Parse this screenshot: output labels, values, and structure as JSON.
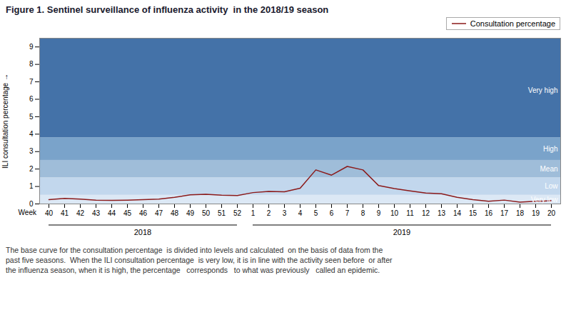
{
  "chart_data": {
    "type": "line",
    "title": "Figure 1. Sentinel surveillance of influenza activity  in the 2018/19 season",
    "ylabel": "ILI consultation percentage",
    "xlabel": "Week",
    "categories": [
      "40",
      "41",
      "42",
      "43",
      "44",
      "45",
      "46",
      "47",
      "48",
      "49",
      "50",
      "51",
      "52",
      "1",
      "2",
      "3",
      "4",
      "5",
      "6",
      "7",
      "8",
      "9",
      "10",
      "11",
      "12",
      "13",
      "14",
      "15",
      "16",
      "17",
      "18",
      "19",
      "20"
    ],
    "series": [
      {
        "name": "Consultation percentage",
        "color": "#8b1a1a",
        "values": [
          0.25,
          0.32,
          0.28,
          0.22,
          0.2,
          0.22,
          0.25,
          0.28,
          0.38,
          0.52,
          0.55,
          0.5,
          0.48,
          0.65,
          0.72,
          0.7,
          0.9,
          1.95,
          1.65,
          2.15,
          1.95,
          1.05,
          0.88,
          0.75,
          0.62,
          0.58,
          0.38,
          0.25,
          0.15,
          0.22,
          0.1,
          0.15,
          0.18
        ]
      }
    ],
    "ylim": [
      0,
      9.5
    ],
    "yticks": [
      0,
      1,
      2,
      3,
      4,
      5,
      6,
      7,
      8,
      9
    ],
    "grid": false,
    "legend": "upper right",
    "zones": [
      {
        "ymin": 0,
        "ymax": 0.5,
        "color": "#dce8f5"
      },
      {
        "ymin": 0.5,
        "ymax": 1.5,
        "color": "#c2d7ed"
      },
      {
        "ymin": 1.5,
        "ymax": 2.5,
        "color": "#9fbdd9"
      },
      {
        "ymin": 2.5,
        "ymax": 3.8,
        "color": "#7aa3ca"
      },
      {
        "ymin": 3.8,
        "ymax": 9.5,
        "color": "#4472a8"
      }
    ],
    "zone_labels": [
      {
        "text": "Very high",
        "y": 6.5,
        "color": "#ffffff"
      },
      {
        "text": "High",
        "y": 3.15,
        "color": "#ffffff"
      },
      {
        "text": "Mean",
        "y": 2.0,
        "color": "#ffffff"
      },
      {
        "text": "Low",
        "y": 1.0,
        "color": "#ffffff"
      },
      {
        "text": "Very low",
        "y": 0.25,
        "color": "#ffffff"
      }
    ],
    "year_groups": [
      {
        "label": "2018",
        "from": "40",
        "to": "52"
      },
      {
        "label": "2019",
        "from": "1",
        "to": "20"
      }
    ],
    "footnote": [
      "The base curve for the consultation percentage  is divided into levels and calculated  on the basis of data from the",
      "past five seasons.  When the ILI consultation percentage  is very low, it is in line with the activity seen before  or after",
      "the influenza season, when it is high, the percentage   corresponds   to what was previously   called an epidemic."
    ]
  }
}
